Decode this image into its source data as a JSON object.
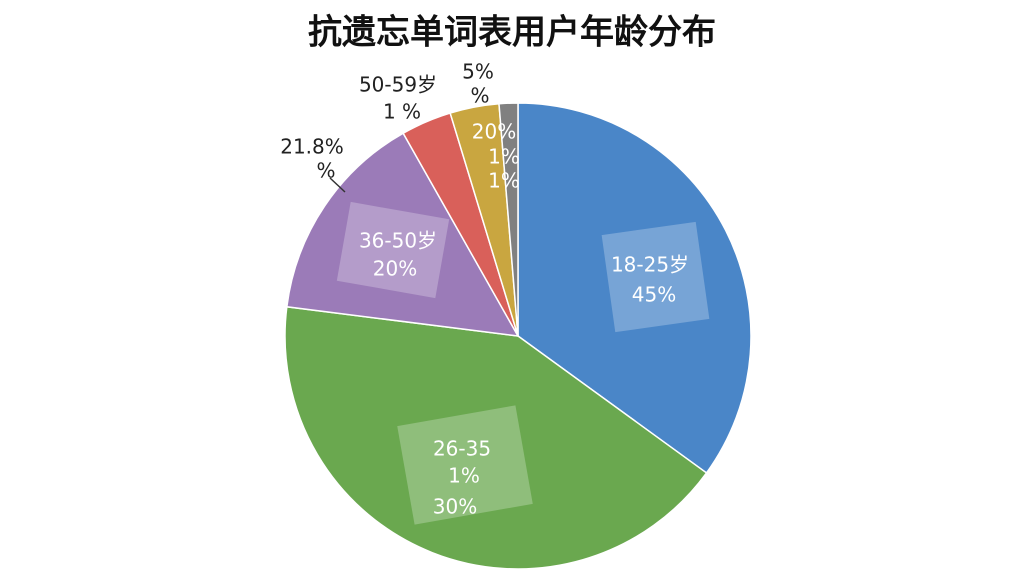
{
  "chart_data": {
    "type": "pie",
    "title": "抗遗忘单词表用户年龄分布",
    "categories": [
      "18-25岁",
      "26-35",
      "36-50岁",
      "50-59岁",
      null,
      null
    ],
    "values": [
      35,
      42,
      14.8,
      3.5,
      3.4,
      1.3
    ],
    "colors": [
      "#4a86c8",
      "#6aa84f",
      "#9b7bb8",
      "#d9605a",
      "#c9a640",
      "#808080"
    ],
    "annotations": [
      "18-25岁",
      "45%",
      "26-35",
      "1%",
      "30%",
      "36-50岁",
      "20%",
      "21.8%",
      "%",
      "50-59岁",
      "1 %",
      "5%",
      "%",
      "20%",
      "1%",
      "1%"
    ]
  }
}
